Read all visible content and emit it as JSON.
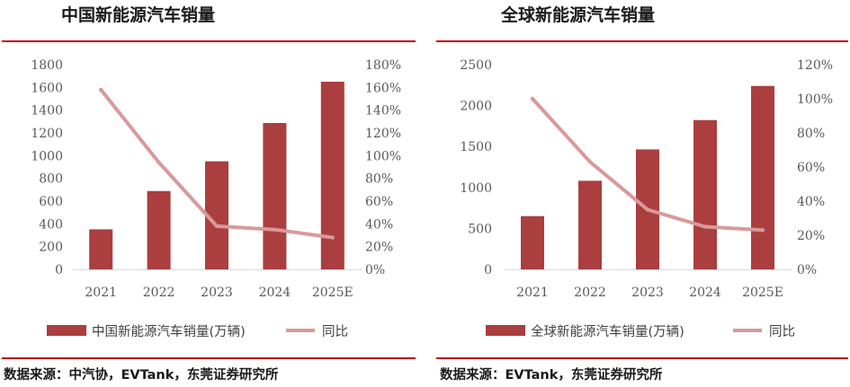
{
  "colors": {
    "bar": "#ab3e3e",
    "line": "#d9999a",
    "rule": "#c00000"
  },
  "charts": [
    {
      "title": "中国新能源汽车销量",
      "source": "数据来源：中汽协，EVTank，东莞证券研究所",
      "legend_bar": "中国新能源汽车销量(万辆)",
      "legend_line": "同比"
    },
    {
      "title": "全球新能源汽车销量",
      "source": "数据来源：EVTank，东莞证券研究所",
      "legend_bar": "全球新能源汽车销量(万辆)",
      "legend_line": "同比"
    }
  ],
  "chart_data": [
    {
      "type": "bar",
      "title": "中国新能源汽车销量",
      "categories": [
        "2021",
        "2022",
        "2023",
        "2024",
        "2025E"
      ],
      "series": [
        {
          "name": "中国新能源汽车销量(万辆)",
          "type": "bar",
          "axis": "left",
          "values": [
            352,
            689,
            950,
            1287,
            1650
          ]
        },
        {
          "name": "同比",
          "type": "line",
          "axis": "right",
          "values": [
            158,
            94,
            38,
            35,
            28
          ]
        }
      ],
      "ylim": [
        0,
        1800
      ],
      "y_ticks": [
        "0",
        "200",
        "400",
        "600",
        "800",
        "1000",
        "1200",
        "1400",
        "1600",
        "1800"
      ],
      "y2lim": [
        0,
        180
      ],
      "y2_ticks": [
        "0%",
        "20%",
        "40%",
        "60%",
        "80%",
        "100%",
        "120%",
        "140%",
        "160%",
        "180%"
      ],
      "legend": "bottom",
      "grid": false
    },
    {
      "type": "bar",
      "title": "全球新能源汽车销量",
      "categories": [
        "2021",
        "2022",
        "2023",
        "2024",
        "2025E"
      ],
      "series": [
        {
          "name": "全球新能源汽车销量(万辆)",
          "type": "bar",
          "axis": "left",
          "values": [
            650,
            1082,
            1465,
            1823,
            2240
          ]
        },
        {
          "name": "同比",
          "type": "line",
          "axis": "right",
          "values": [
            100,
            63,
            35,
            25,
            23
          ]
        }
      ],
      "ylim": [
        0,
        2500
      ],
      "y_ticks": [
        "0",
        "500",
        "1000",
        "1500",
        "2000",
        "2500"
      ],
      "y2lim": [
        0,
        120
      ],
      "y2_ticks": [
        "0%",
        "20%",
        "40%",
        "60%",
        "80%",
        "100%",
        "120%"
      ],
      "legend": "bottom",
      "grid": false
    }
  ]
}
